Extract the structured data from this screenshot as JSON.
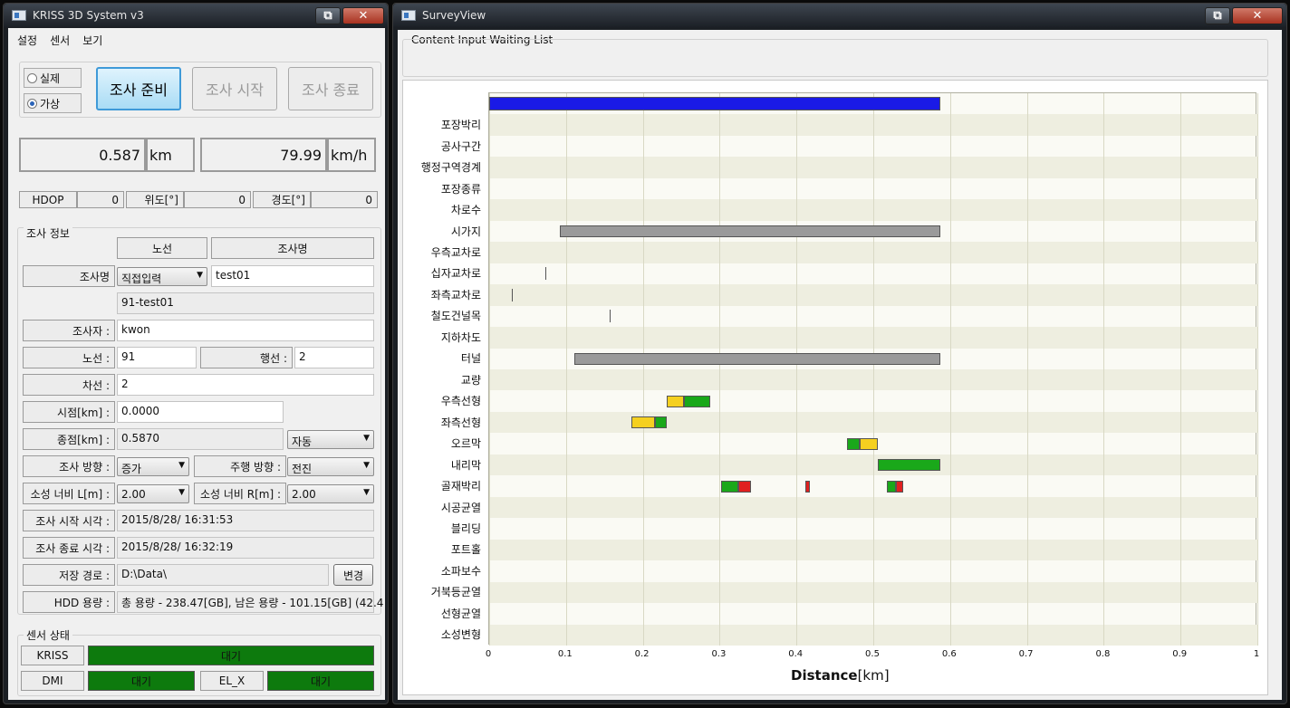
{
  "left_window": {
    "title": "KRISS 3D System v3",
    "menu": [
      "설정",
      "센서",
      "보기"
    ],
    "mode_real": "실제",
    "mode_virtual": "가상",
    "buttons": {
      "prepare": "조사 준비",
      "start": "조사 시작",
      "end": "조사 종료"
    },
    "distance": {
      "value": "0.587",
      "unit": "km"
    },
    "speed": {
      "value": "79.99",
      "unit": "km/h"
    },
    "gps": {
      "hdop_label": "HDOP",
      "hdop": "0",
      "lat_label": "위도[°]",
      "lat": "0",
      "lon_label": "경도[°]",
      "lon": "0"
    },
    "survey_info": {
      "title": "조사 정보",
      "col_route": "노선",
      "col_name": "조사명",
      "name_label": "조사명",
      "name_select": "직접입력",
      "name_value": "test01",
      "name_full": "91-test01",
      "surveyor_label": "조사자 :",
      "surveyor": "kwon",
      "route_label": "노선 :",
      "route": "91",
      "direction_label": "행선 :",
      "direction": "2",
      "lane_label": "차선 :",
      "lane": "2",
      "start_label": "시점[km] :",
      "start": "0.0000",
      "end_label": "종점[km] :",
      "end": "0.5870",
      "end_mode": "자동",
      "survey_dir_label": "조사 방향 :",
      "survey_dir": "증가",
      "drive_dir_label": "주행 방향 :",
      "drive_dir": "전진",
      "width_l_label": "소성 너비 L[m] :",
      "width_l": "2.00",
      "width_r_label": "소성 너비 R[m] :",
      "width_r": "2.00",
      "start_time_label": "조사 시작 시각 :",
      "start_time": "2015/8/28/ 16:31:53",
      "end_time_label": "조사 종료 시각 :",
      "end_time": "2015/8/28/ 16:32:19",
      "path_label": "저장 경로 :",
      "path": "D:\\Data\\",
      "path_button": "변경",
      "hdd_label": "HDD 용량 :",
      "hdd": "총 용량 - 238.47[GB], 남은 용량 - 101.15[GB] (42.4"
    },
    "sensor_status": {
      "title": "센서 상태",
      "kriss_label": "KRISS",
      "kriss": "대기",
      "dmi_label": "DMI",
      "dmi": "대기",
      "elx_label": "EL_X",
      "elx": "대기"
    },
    "colors": {
      "status_green": "#0d7a0d",
      "button_active": "#a9dcf5"
    }
  },
  "right_window": {
    "title": "SurveyView",
    "waiting_list_label": "Content Input Waiting List"
  },
  "chart_data": {
    "type": "gantt",
    "xlabel_bold": "Distance",
    "xlabel_unit": "[km]",
    "xlim": [
      0,
      1
    ],
    "xticks": [
      "0",
      "0.1",
      "0.2",
      "0.3",
      "0.4",
      "0.5",
      "0.6",
      "0.7",
      "0.8",
      "0.9",
      "1"
    ],
    "rows": [
      "",
      "포장박리",
      "공사구간",
      "행정구역경계",
      "포장종류",
      "차로수",
      "시가지",
      "우측교차로",
      "십자교차로",
      "좌측교차로",
      "철도건널목",
      "지하차도",
      "터널",
      "교량",
      "우측선형",
      "좌측선형",
      "오르막",
      "내리막",
      "골재박리",
      "시공균열",
      "블리딩",
      "포트홀",
      "소파보수",
      "거북등균열",
      "선형균열",
      "소성변형"
    ],
    "colors": {
      "progress": "#1a1ae6",
      "gray": "#9a9a9a",
      "yellow": "#f5d020",
      "green": "#1aa81a",
      "red": "#e02020",
      "band": "#eeeee0"
    },
    "segments": [
      {
        "row": 0,
        "start": 0.0,
        "end": 0.587,
        "color": "progress"
      },
      {
        "row": 6,
        "start": 0.092,
        "end": 0.587,
        "color": "gray"
      },
      {
        "row": 8,
        "start": 0.073,
        "end": 0.073,
        "color": "line"
      },
      {
        "row": 9,
        "start": 0.029,
        "end": 0.029,
        "color": "line"
      },
      {
        "row": 10,
        "start": 0.157,
        "end": 0.157,
        "color": "line"
      },
      {
        "row": 12,
        "start": 0.111,
        "end": 0.587,
        "color": "gray"
      },
      {
        "row": 14,
        "start": 0.231,
        "end": 0.253,
        "color": "yellow"
      },
      {
        "row": 14,
        "start": 0.253,
        "end": 0.288,
        "color": "green"
      },
      {
        "row": 15,
        "start": 0.185,
        "end": 0.216,
        "color": "yellow"
      },
      {
        "row": 15,
        "start": 0.216,
        "end": 0.231,
        "color": "green"
      },
      {
        "row": 16,
        "start": 0.466,
        "end": 0.482,
        "color": "green"
      },
      {
        "row": 16,
        "start": 0.482,
        "end": 0.506,
        "color": "yellow"
      },
      {
        "row": 17,
        "start": 0.506,
        "end": 0.587,
        "color": "green"
      },
      {
        "row": 18,
        "start": 0.302,
        "end": 0.324,
        "color": "green"
      },
      {
        "row": 18,
        "start": 0.324,
        "end": 0.341,
        "color": "red"
      },
      {
        "row": 18,
        "start": 0.411,
        "end": 0.418,
        "color": "red"
      },
      {
        "row": 18,
        "start": 0.518,
        "end": 0.529,
        "color": "green"
      },
      {
        "row": 18,
        "start": 0.529,
        "end": 0.539,
        "color": "red"
      }
    ]
  }
}
